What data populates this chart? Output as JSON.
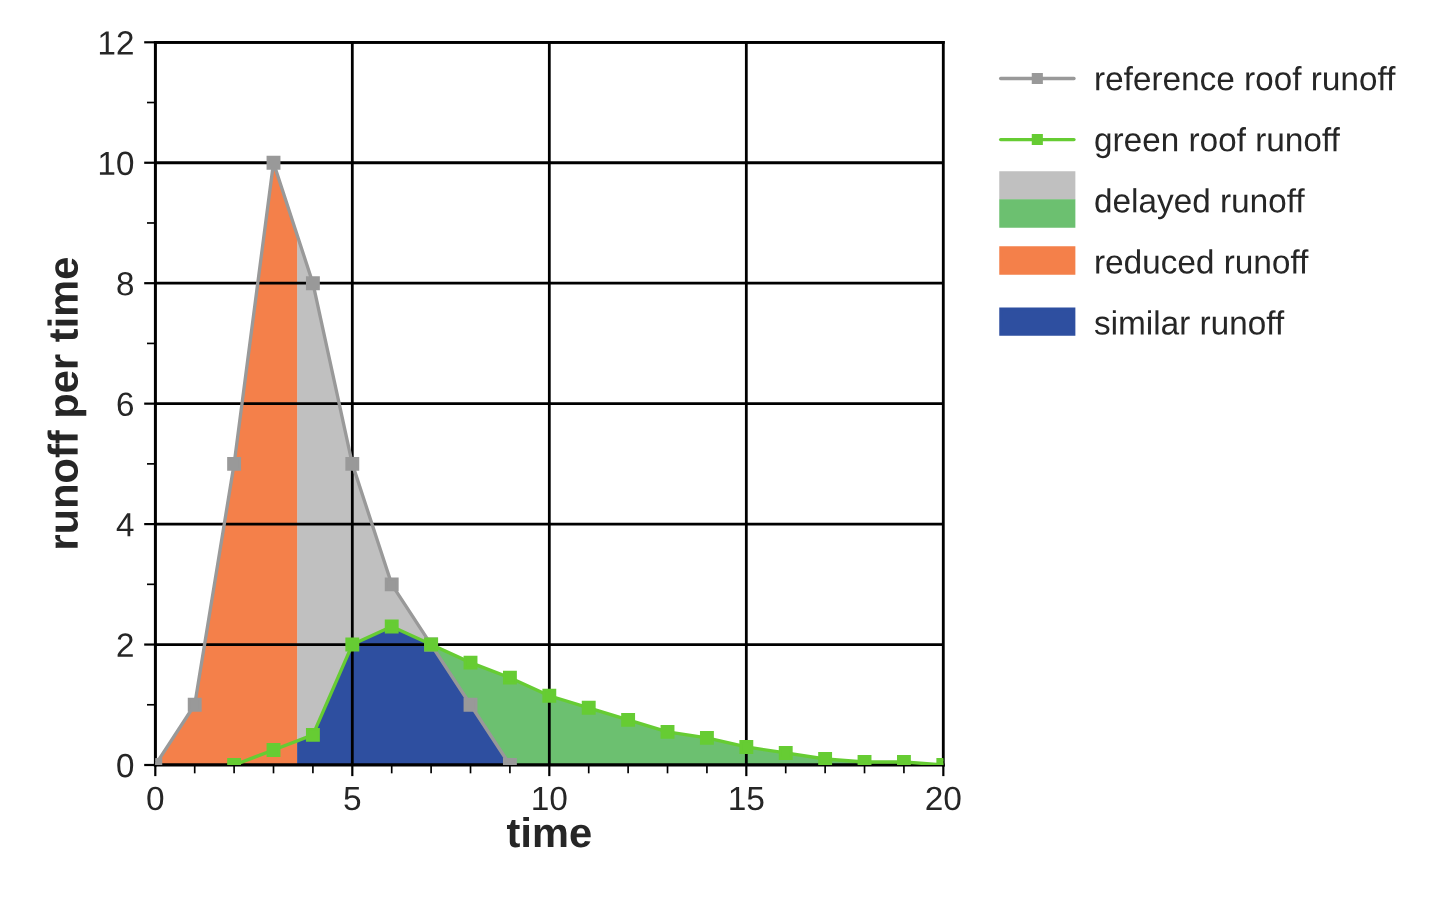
{
  "chart_data": {
    "type": "line",
    "xlabel": "time",
    "ylabel": "runoff per time",
    "xlim": [
      0,
      20
    ],
    "xticks": [
      0,
      5,
      10,
      15,
      20
    ],
    "ylim": [
      0,
      12
    ],
    "yticks": [
      0,
      2,
      4,
      6,
      8,
      10,
      12
    ],
    "grid": true,
    "legend": "right",
    "series": [
      {
        "name": "reference roof runoff",
        "marker": "square",
        "color": "#999999",
        "x": [
          0,
          1,
          2,
          3,
          4,
          5,
          6,
          7,
          8,
          9
        ],
        "values": [
          0,
          1,
          5,
          10,
          8,
          5,
          3,
          2,
          1,
          0
        ]
      },
      {
        "name": "green roof runoff",
        "marker": "square",
        "color": "#66cc33",
        "x": [
          2,
          3,
          4,
          5,
          6,
          7,
          8,
          9,
          10,
          11,
          12,
          13,
          14,
          15,
          16,
          17,
          18,
          19,
          20
        ],
        "values": [
          0,
          0.25,
          0.5,
          2,
          2.3,
          2,
          1.7,
          1.45,
          1.15,
          0.95,
          0.75,
          0.55,
          0.45,
          0.3,
          0.2,
          0.1,
          0.05,
          0.05,
          0
        ]
      },
      {
        "name": "delayed runoff",
        "type": "area",
        "color": "#c0c0c0",
        "x": [
          3.6,
          4,
          5,
          6,
          7
        ],
        "values": [
          8.8,
          8,
          5,
          3,
          2
        ]
      },
      {
        "type": "area",
        "color": "#6cc070",
        "x": [
          7,
          8,
          9,
          10,
          11,
          12,
          13,
          14,
          15,
          16,
          17,
          18,
          19,
          20
        ],
        "values": [
          2,
          1.7,
          1.45,
          1.15,
          0.95,
          0.75,
          0.55,
          0.45,
          0.3,
          0.2,
          0.1,
          0.05,
          0.05,
          0
        ]
      },
      {
        "name": "reduced runoff",
        "type": "area",
        "color": "#f4804a",
        "x": [
          0,
          1,
          2,
          3,
          3.6
        ],
        "values": [
          0,
          1,
          5,
          10,
          8.8
        ]
      },
      {
        "name": "similar runoff",
        "type": "area",
        "color": "#2e4fa0",
        "x": [
          3.6,
          4,
          5,
          6,
          7,
          8,
          9
        ],
        "values": [
          0.4,
          0.5,
          2,
          2.3,
          2,
          1,
          0
        ]
      }
    ]
  }
}
